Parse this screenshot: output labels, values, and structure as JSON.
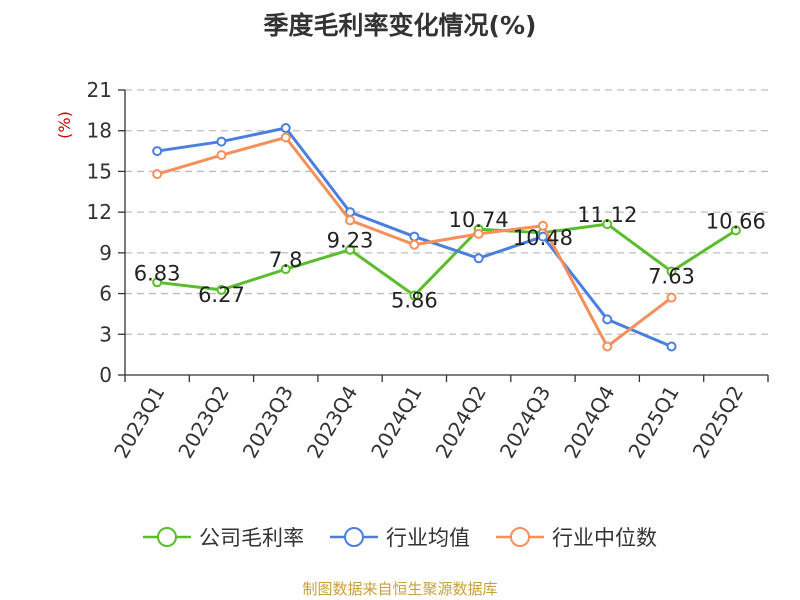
{
  "chart_data": {
    "type": "line",
    "title": "季度毛利率变化情况(%)",
    "ylabel": "(%)",
    "xlabel": "",
    "categories": [
      "2023Q1",
      "2023Q2",
      "2023Q3",
      "2023Q4",
      "2024Q1",
      "2024Q2",
      "2024Q3",
      "2024Q4",
      "2025Q1",
      "2025Q2"
    ],
    "yticks": [
      0,
      3,
      6,
      9,
      12,
      15,
      18,
      21
    ],
    "ylim": [
      0,
      21
    ],
    "grid": true,
    "legend_position": "bottom",
    "series": [
      {
        "name": "公司毛利率",
        "color": "#5bbd2b",
        "show_labels": true,
        "labels": [
          "6.83",
          "6.27",
          "7.8",
          "9.23",
          "5.86",
          "10.74",
          "10.48",
          "11.12",
          "7.63",
          "10.66"
        ],
        "values": [
          6.83,
          6.27,
          7.8,
          9.23,
          5.86,
          10.74,
          10.48,
          11.12,
          7.63,
          10.66
        ]
      },
      {
        "name": "行业均值",
        "color": "#4a7fe0",
        "show_labels": false,
        "values": [
          16.5,
          17.2,
          18.2,
          12.0,
          10.2,
          8.6,
          10.2,
          4.1,
          2.1,
          null
        ]
      },
      {
        "name": "行业中位数",
        "color": "#f5905a",
        "show_labels": false,
        "values": [
          14.8,
          16.2,
          17.5,
          11.4,
          9.6,
          10.4,
          11.0,
          2.1,
          5.7,
          null
        ]
      }
    ]
  },
  "source_note": "制图数据来自恒生聚源数据库"
}
